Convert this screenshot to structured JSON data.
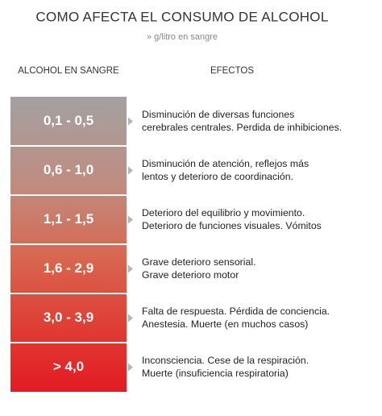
{
  "header": {
    "title": "COMO AFECTA EL CONSUMO DE ALCOHOL",
    "subtitle": "» g/litro en sangre"
  },
  "columns": [
    "ALCOHOL EN SANGRE",
    "EFECTOS"
  ],
  "rows": [
    {
      "range": "0,1 - 0,5",
      "effects": [
        "Disminución de diversas funciones",
        "cerebrales centrales. Perdida de inhibiciones."
      ]
    },
    {
      "range": "0,6 - 1,0",
      "effects": [
        "Disminución de atención, reflejos más",
        "lentos y deterioro de coordinación."
      ]
    },
    {
      "range": "1,1 - 1,5",
      "effects": [
        "Deterioro del equilibrio y movimiento.",
        "Deterioro de funciones visuales. Vómitos"
      ]
    },
    {
      "range": "1,6 - 2,9",
      "effects": [
        "Grave deterioro sensorial.",
        "Grave deterioro motor"
      ]
    },
    {
      "range": "3,0 - 3,9",
      "effects": [
        "Falta de respuesta. Pérdida de conciencia.",
        "Anestesia. Muerte (en muchos casos)"
      ]
    },
    {
      "range": "> 4,0",
      "effects": [
        "Inconsciencia. Cese de la respiración.",
        "Muerte (insuficiencia respiratoria)"
      ]
    }
  ]
}
